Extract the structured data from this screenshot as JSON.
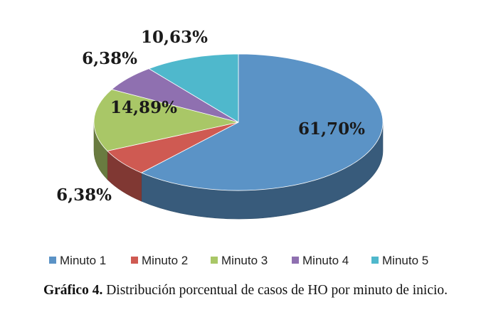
{
  "chart_data": {
    "type": "pie",
    "style": "3d",
    "categories": [
      "Minuto 1",
      "Minuto 2",
      "Minuto 3",
      "Minuto 4",
      "Minuto 5"
    ],
    "values": [
      61.7,
      6.38,
      14.89,
      6.38,
      10.63
    ],
    "labels": [
      "61,70%",
      "6,38%",
      "14,89%",
      "6,38%",
      "10,63%"
    ],
    "colors": [
      "#5b93c6",
      "#cf5a52",
      "#a9c767",
      "#8f70b0",
      "#4fb8cc"
    ],
    "legend_position": "bottom"
  },
  "caption": {
    "prefix": "Gráfico 4.",
    "text": "Distribución porcentual de casos de HO por minuto de inicio."
  }
}
